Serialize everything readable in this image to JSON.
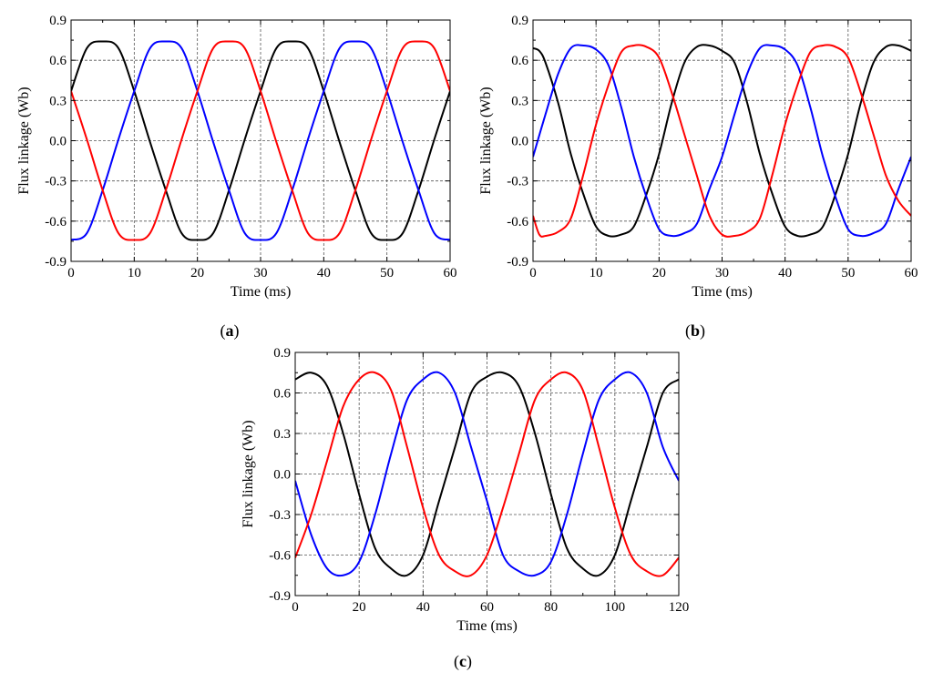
{
  "colors": {
    "phase1": "#000000",
    "phase2": "#0000ff",
    "phase3": "#ff0000"
  },
  "chart_data": [
    {
      "id": "a",
      "type": "line",
      "panel_label": "a",
      "xlabel": "Time (ms)",
      "ylabel": "Flux linkage (Wb)",
      "xlim": [
        0,
        60
      ],
      "ylim": [
        -0.9,
        0.9
      ],
      "xticks": [
        0,
        10,
        20,
        30,
        40,
        50,
        60
      ],
      "xtick_labels": [
        "0",
        "10",
        "20",
        "30",
        "40",
        "50",
        "60"
      ],
      "yticks": [
        -0.9,
        -0.6,
        -0.3,
        0.0,
        0.3,
        0.6,
        0.9
      ],
      "ytick_labels": [
        "-0.9",
        "-0.6",
        "-0.3",
        "0.0",
        "0.3",
        "0.6",
        "0.9"
      ],
      "grid": true,
      "series": [
        {
          "color": "#000000",
          "x": [
            0,
            2.5,
            5,
            7.5,
            10,
            12.5,
            15,
            17.5,
            20,
            22.5,
            25,
            27.5,
            30,
            32.5,
            35,
            37.5,
            40,
            42.5,
            45,
            47.5,
            50,
            52.5,
            55,
            57.5,
            60
          ],
          "y": [
            0.37,
            0.69,
            0.74,
            0.69,
            0.37,
            -0.01,
            -0.37,
            -0.69,
            -0.74,
            -0.69,
            -0.37,
            0.01,
            0.37,
            0.69,
            0.74,
            0.69,
            0.37,
            -0.01,
            -0.37,
            -0.69,
            -0.74,
            -0.69,
            -0.37,
            0.01,
            0.37
          ]
        },
        {
          "color": "#0000ff",
          "x": [
            0,
            2.5,
            5,
            7.5,
            10,
            12.5,
            15,
            17.5,
            20,
            22.5,
            25,
            27.5,
            30,
            32.5,
            35,
            37.5,
            40,
            42.5,
            45,
            47.5,
            50,
            52.5,
            55,
            57.5,
            60
          ],
          "y": [
            -0.74,
            -0.69,
            -0.37,
            0.01,
            0.37,
            0.69,
            0.74,
            0.69,
            0.37,
            -0.01,
            -0.37,
            -0.69,
            -0.74,
            -0.69,
            -0.37,
            0.01,
            0.37,
            0.69,
            0.74,
            0.69,
            0.37,
            -0.01,
            -0.37,
            -0.69,
            -0.74
          ]
        },
        {
          "color": "#ff0000",
          "x": [
            0,
            2.5,
            5,
            7.5,
            10,
            12.5,
            15,
            17.5,
            20,
            22.5,
            25,
            27.5,
            30,
            32.5,
            35,
            37.5,
            40,
            42.5,
            45,
            47.5,
            50,
            52.5,
            55,
            57.5,
            60
          ],
          "y": [
            0.37,
            0.01,
            -0.37,
            -0.69,
            -0.74,
            -0.69,
            -0.37,
            0.01,
            0.37,
            0.69,
            0.74,
            0.69,
            0.37,
            -0.01,
            -0.37,
            -0.69,
            -0.74,
            -0.69,
            -0.37,
            0.01,
            0.37,
            0.69,
            0.74,
            0.69,
            0.37
          ]
        }
      ]
    },
    {
      "id": "b",
      "type": "line",
      "panel_label": "b",
      "xlabel": "Time (ms)",
      "ylabel": "Flux linkage (Wb)",
      "xlim": [
        0,
        60
      ],
      "ylim": [
        -0.9,
        0.9
      ],
      "xticks": [
        0,
        10,
        20,
        30,
        40,
        50,
        60
      ],
      "xtick_labels": [
        "0",
        "10",
        "20",
        "30",
        "40",
        "50",
        "60"
      ],
      "yticks": [
        -0.9,
        -0.6,
        -0.3,
        0.0,
        0.3,
        0.6,
        0.9
      ],
      "ytick_labels": [
        "-0.9",
        "-0.6",
        "-0.3",
        "0.0",
        "0.3",
        "0.6",
        "0.9"
      ],
      "grid": true,
      "series": [
        {
          "color": "#000000",
          "x": [
            0,
            1,
            2,
            4,
            6,
            8,
            10,
            12,
            14,
            16,
            18,
            20,
            22,
            24,
            26,
            28,
            30,
            32,
            34,
            36,
            38,
            40,
            42,
            44,
            46,
            48,
            50,
            52,
            54,
            56,
            58,
            60
          ],
          "y": [
            0.69,
            0.67,
            0.58,
            0.28,
            -0.1,
            -0.4,
            -0.64,
            -0.71,
            -0.7,
            -0.64,
            -0.4,
            -0.1,
            0.28,
            0.58,
            0.7,
            0.71,
            0.67,
            0.58,
            0.28,
            -0.1,
            -0.4,
            -0.64,
            -0.71,
            -0.7,
            -0.64,
            -0.4,
            -0.1,
            0.28,
            0.58,
            0.7,
            0.71,
            0.67
          ]
        },
        {
          "color": "#0000ff",
          "x": [
            0,
            2,
            4,
            6,
            8,
            10,
            12,
            14,
            16,
            18,
            20,
            22,
            24,
            26,
            28,
            30,
            32,
            34,
            36,
            38,
            40,
            42,
            44,
            46,
            48,
            50,
            52,
            54,
            56,
            58,
            60
          ],
          "y": [
            -0.12,
            0.2,
            0.5,
            0.69,
            0.71,
            0.68,
            0.56,
            0.25,
            -0.12,
            -0.42,
            -0.66,
            -0.71,
            -0.69,
            -0.62,
            -0.36,
            -0.12,
            0.2,
            0.5,
            0.69,
            0.71,
            0.68,
            0.56,
            0.25,
            -0.12,
            -0.42,
            -0.66,
            -0.71,
            -0.69,
            -0.62,
            -0.36,
            -0.12
          ]
        },
        {
          "color": "#ff0000",
          "x": [
            0,
            1,
            2,
            4,
            6,
            8,
            10,
            12,
            14,
            16,
            18,
            20,
            22,
            24,
            26,
            28,
            30,
            32,
            34,
            36,
            38,
            40,
            42,
            44,
            46,
            48,
            50,
            52,
            54,
            56,
            58,
            60
          ],
          "y": [
            -0.56,
            -0.7,
            -0.71,
            -0.68,
            -0.58,
            -0.25,
            0.12,
            0.42,
            0.66,
            0.71,
            0.7,
            0.62,
            0.36,
            0.05,
            -0.26,
            -0.56,
            -0.7,
            -0.71,
            -0.68,
            -0.58,
            -0.25,
            0.12,
            0.42,
            0.66,
            0.71,
            0.7,
            0.62,
            0.36,
            0.05,
            -0.26,
            -0.45,
            -0.56
          ]
        }
      ]
    },
    {
      "id": "c",
      "type": "line",
      "panel_label": "c",
      "xlabel": "Time (ms)",
      "ylabel": "Flux linkage (Wb)",
      "xlim": [
        0,
        120
      ],
      "ylim": [
        -0.9,
        0.9
      ],
      "xticks": [
        0,
        20,
        40,
        60,
        80,
        100,
        120
      ],
      "xtick_labels": [
        "0",
        "20",
        "40",
        "60",
        "80",
        "100",
        "120"
      ],
      "yticks": [
        -0.9,
        -0.6,
        -0.3,
        0.0,
        0.3,
        0.6,
        0.9
      ],
      "ytick_labels": [
        "-0.9",
        "-0.6",
        "-0.3",
        "0.0",
        "0.3",
        "0.6",
        "0.9"
      ],
      "grid": true,
      "series": [
        {
          "color": "#000000",
          "x": [
            0,
            5,
            10,
            15,
            20,
            25,
            30,
            35,
            40,
            45,
            50,
            55,
            60,
            65,
            70,
            75,
            80,
            85,
            90,
            95,
            100,
            105,
            110,
            115,
            120
          ],
          "y": [
            0.7,
            0.75,
            0.65,
            0.3,
            -0.15,
            -0.55,
            -0.7,
            -0.75,
            -0.6,
            -0.2,
            0.2,
            0.6,
            0.72,
            0.75,
            0.65,
            0.3,
            -0.15,
            -0.55,
            -0.7,
            -0.75,
            -0.6,
            -0.2,
            0.2,
            0.6,
            0.7
          ]
        },
        {
          "color": "#0000ff",
          "x": [
            0,
            5,
            10,
            15,
            20,
            25,
            30,
            35,
            40,
            45,
            50,
            55,
            60,
            65,
            70,
            75,
            80,
            85,
            90,
            95,
            100,
            105,
            110,
            115,
            120
          ],
          "y": [
            -0.05,
            -0.45,
            -0.7,
            -0.75,
            -0.65,
            -0.3,
            0.15,
            0.55,
            0.7,
            0.75,
            0.6,
            0.2,
            -0.2,
            -0.6,
            -0.72,
            -0.75,
            -0.65,
            -0.3,
            0.15,
            0.55,
            0.7,
            0.75,
            0.6,
            0.2,
            -0.05
          ]
        },
        {
          "color": "#ff0000",
          "x": [
            0,
            5,
            10,
            15,
            20,
            25,
            30,
            35,
            40,
            45,
            50,
            55,
            60,
            65,
            70,
            75,
            80,
            85,
            90,
            95,
            100,
            105,
            110,
            115,
            120
          ],
          "y": [
            -0.62,
            -0.3,
            0.1,
            0.5,
            0.7,
            0.75,
            0.62,
            0.2,
            -0.25,
            -0.6,
            -0.72,
            -0.75,
            -0.6,
            -0.25,
            0.15,
            0.55,
            0.7,
            0.75,
            0.62,
            0.2,
            -0.25,
            -0.6,
            -0.72,
            -0.75,
            -0.62
          ]
        }
      ]
    }
  ]
}
